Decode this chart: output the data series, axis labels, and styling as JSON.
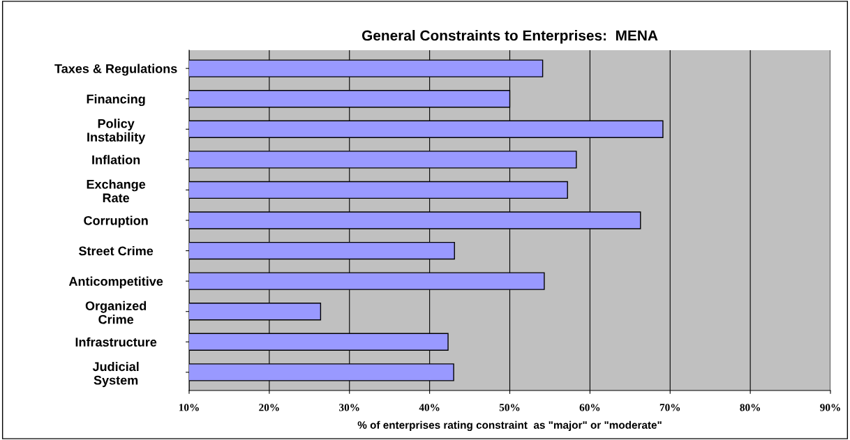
{
  "chart_data": {
    "type": "bar",
    "orientation": "horizontal",
    "title": "General Constraints to Enterprises:  MENA",
    "xlabel": "% of enterprises rating constraint  as \"major\" or \"moderate\"",
    "categories": [
      "Taxes & Regulations",
      "Financing",
      "Policy\nInstability",
      "Inflation",
      "Exchange\nRate",
      "Corruption",
      "Street Crime",
      "Anticompetitive",
      "Organized\nCrime",
      "Infrastructure",
      "Judicial\nSystem"
    ],
    "values": [
      54.1,
      50.0,
      69.1,
      58.3,
      57.2,
      66.3,
      43.1,
      54.3,
      26.4,
      42.3,
      43.0
    ],
    "color": "#9999ff",
    "xlim": [
      10,
      90
    ],
    "xticks": [
      {
        "value": 10,
        "label": "10%"
      },
      {
        "value": 20,
        "label": "20%"
      },
      {
        "value": 30,
        "label": "30%"
      },
      {
        "value": 40,
        "label": "40%"
      },
      {
        "value": 50,
        "label": "50%"
      },
      {
        "value": 60,
        "label": "60%"
      },
      {
        "value": 70,
        "label": "70%"
      },
      {
        "value": 80,
        "label": "80%"
      },
      {
        "value": 90,
        "label": "90%"
      }
    ],
    "grid": "x",
    "legend": false
  }
}
